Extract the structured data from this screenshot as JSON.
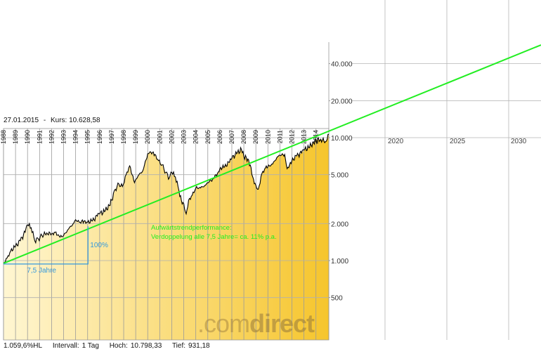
{
  "header": {
    "date": "27.01.2015",
    "separator": "-",
    "price_label": "Kurs:",
    "price_value": "10.628,58"
  },
  "footer": {
    "performance": "1.059,6%HL",
    "interval_label": "Intervall:",
    "interval_value": "1 Tag",
    "high_label": "Hoch:",
    "high_value": "10.798,33",
    "low_label": "Tief:",
    "low_value": "931,18"
  },
  "brand": {
    "prefix": ".com",
    "suffix": "direct"
  },
  "colors": {
    "trend_line": "#22ee22",
    "annotation": "#3399dd",
    "fill_light": "#fff6d0",
    "fill_dark": "#f5c830",
    "price_line": "#000000"
  },
  "chart_data": {
    "type": "line",
    "yscale": "log",
    "ylim": [
      300,
      60000
    ],
    "yticks": [
      500,
      1000,
      2000,
      5000,
      10000,
      20000,
      40000
    ],
    "ytick_labels": [
      "500",
      "1.000",
      "2.000",
      "5.000",
      "10.000",
      "20.000",
      "40.000"
    ],
    "xlim": [
      1988.0,
      2033.0
    ],
    "year_labels_in_plot": [
      "1988",
      "1989",
      "1990",
      "1991",
      "1992",
      "1993",
      "1994",
      "1995",
      "1996",
      "1997",
      "1998",
      "1999",
      "2000",
      "2001",
      "2002",
      "2003",
      "2004",
      "2005",
      "2006",
      "2007",
      "2008",
      "2009",
      "2010",
      "2011",
      "2012",
      "2013",
      "2014"
    ],
    "year_labels_projection": [
      "2020",
      "2025",
      "2030"
    ],
    "price_series": {
      "x": [
        1988.0,
        1988.3,
        1988.6,
        1989.0,
        1989.4,
        1989.8,
        1990.0,
        1990.3,
        1990.6,
        1990.9,
        1991.2,
        1991.6,
        1992.0,
        1992.3,
        1992.7,
        1993.0,
        1993.4,
        1993.8,
        1994.0,
        1994.3,
        1994.7,
        1995.0,
        1995.4,
        1995.8,
        1996.0,
        1996.4,
        1996.8,
        1997.0,
        1997.3,
        1997.6,
        1997.9,
        1998.2,
        1998.5,
        1998.7,
        1998.9,
        1999.2,
        1999.6,
        2000.0,
        2000.2,
        2000.6,
        2000.9,
        2001.2,
        2001.5,
        2001.8,
        2002.0,
        2002.3,
        2002.6,
        2002.8,
        2003.0,
        2003.2,
        2003.4,
        2003.7,
        2004.0,
        2004.4,
        2004.8,
        2005.0,
        2005.4,
        2005.8,
        2006.0,
        2006.4,
        2006.8,
        2007.0,
        2007.4,
        2007.8,
        2008.0,
        2008.4,
        2008.8,
        2009.0,
        2009.2,
        2009.5,
        2009.8,
        2010.0,
        2010.4,
        2010.8,
        2011.0,
        2011.4,
        2011.6,
        2011.8,
        2012.0,
        2012.4,
        2012.8,
        2013.0,
        2013.4,
        2013.8,
        2014.0,
        2014.4,
        2014.8,
        2015.07
      ],
      "y": [
        950,
        1050,
        1200,
        1300,
        1450,
        1700,
        1950,
        1850,
        1450,
        1500,
        1600,
        1680,
        1650,
        1700,
        1550,
        1600,
        1800,
        2000,
        2150,
        2050,
        2100,
        2050,
        2100,
        2300,
        2400,
        2500,
        2800,
        3100,
        3800,
        4200,
        4000,
        5000,
        5900,
        5000,
        4300,
        4900,
        5400,
        7400,
        7700,
        7300,
        6500,
        6000,
        5200,
        4700,
        5200,
        4800,
        3700,
        3100,
        2900,
        2400,
        3100,
        3400,
        3900,
        3900,
        4100,
        4300,
        4600,
        5100,
        5600,
        5800,
        6300,
        6800,
        7400,
        8000,
        7000,
        6600,
        4600,
        4100,
        3800,
        5100,
        5700,
        5800,
        6100,
        7000,
        7200,
        7300,
        5600,
        6000,
        6500,
        7100,
        7500,
        7900,
        8300,
        9100,
        9500,
        9700,
        9300,
        10628.58
      ]
    },
    "trendline": {
      "x": [
        1988.0,
        2032.8
      ],
      "y": [
        950,
        53000
      ]
    },
    "doubling_annotation": {
      "x_start": 1988.0,
      "x_end": 1995.5,
      "y_low": 950,
      "y_high": 1900,
      "width_label": "7,5 Jahre",
      "height_label": "100%"
    },
    "trend_annotation": {
      "lines": [
        "Aufwärtstrendperformance:",
        "Verdoppelung alle 7,5 Jahre= ca. 11% p.a."
      ],
      "x": 1993.9,
      "y": 1950
    }
  }
}
